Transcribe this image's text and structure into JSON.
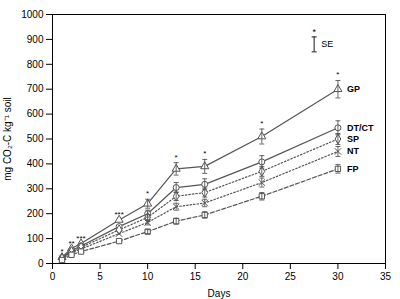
{
  "chart_data": {
    "type": "line",
    "xlabel": "Days",
    "ylabel": "mg CO₂-C kg⁻¹ soil",
    "xlim": [
      0,
      35
    ],
    "ylim": [
      0,
      1000
    ],
    "xticks": [
      0,
      5,
      10,
      15,
      20,
      25,
      30,
      35
    ],
    "yticks": [
      0,
      100,
      200,
      300,
      400,
      500,
      600,
      700,
      800,
      900,
      1000
    ],
    "grid": false,
    "color": "#555555",
    "x": [
      1,
      2,
      3,
      7,
      10,
      13,
      16,
      22,
      30
    ],
    "series": [
      {
        "name": "GP",
        "marker": "triangle",
        "line_style": "solid",
        "values": [
          25,
          60,
          80,
          175,
          240,
          380,
          390,
          510,
          700
        ],
        "errors": [
          null,
          null,
          null,
          null,
          18,
          25,
          28,
          30,
          35
        ]
      },
      {
        "name": "DT/CT",
        "marker": "circle",
        "line_style": "solid",
        "values": [
          22,
          52,
          70,
          148,
          200,
          305,
          318,
          408,
          545
        ],
        "errors": [
          null,
          null,
          null,
          null,
          14,
          20,
          22,
          25,
          28
        ]
      },
      {
        "name": "SP",
        "marker": "diamond",
        "line_style": "dotted",
        "values": [
          20,
          48,
          65,
          135,
          185,
          270,
          285,
          370,
          500
        ],
        "errors": [
          null,
          null,
          null,
          null,
          12,
          17,
          18,
          20,
          22
        ]
      },
      {
        "name": "NT",
        "marker": "x",
        "line_style": "dotted",
        "values": [
          18,
          44,
          58,
          120,
          165,
          228,
          243,
          325,
          450
        ],
        "errors": [
          null,
          null,
          null,
          null,
          10,
          14,
          15,
          18,
          20
        ]
      },
      {
        "name": "FP",
        "marker": "square",
        "line_style": "dashed",
        "values": [
          14,
          35,
          48,
          90,
          128,
          170,
          195,
          270,
          380
        ],
        "errors": [
          null,
          null,
          null,
          null,
          8,
          12,
          13,
          15,
          17
        ]
      }
    ],
    "annotations": [
      {
        "x": 1,
        "text": "*"
      },
      {
        "x": 2,
        "text": "**"
      },
      {
        "x": 3,
        "text": "***"
      },
      {
        "x": 7,
        "text": "***"
      },
      {
        "x": 10,
        "text": "*"
      },
      {
        "x": 13,
        "text": "*"
      },
      {
        "x": 16,
        "text": "*"
      },
      {
        "x": 22,
        "text": "*"
      },
      {
        "x": 30,
        "text": "*"
      }
    ],
    "se_key": {
      "x": 27.5,
      "y": 880,
      "error": 30,
      "label": "SE",
      "mark": "*"
    }
  }
}
